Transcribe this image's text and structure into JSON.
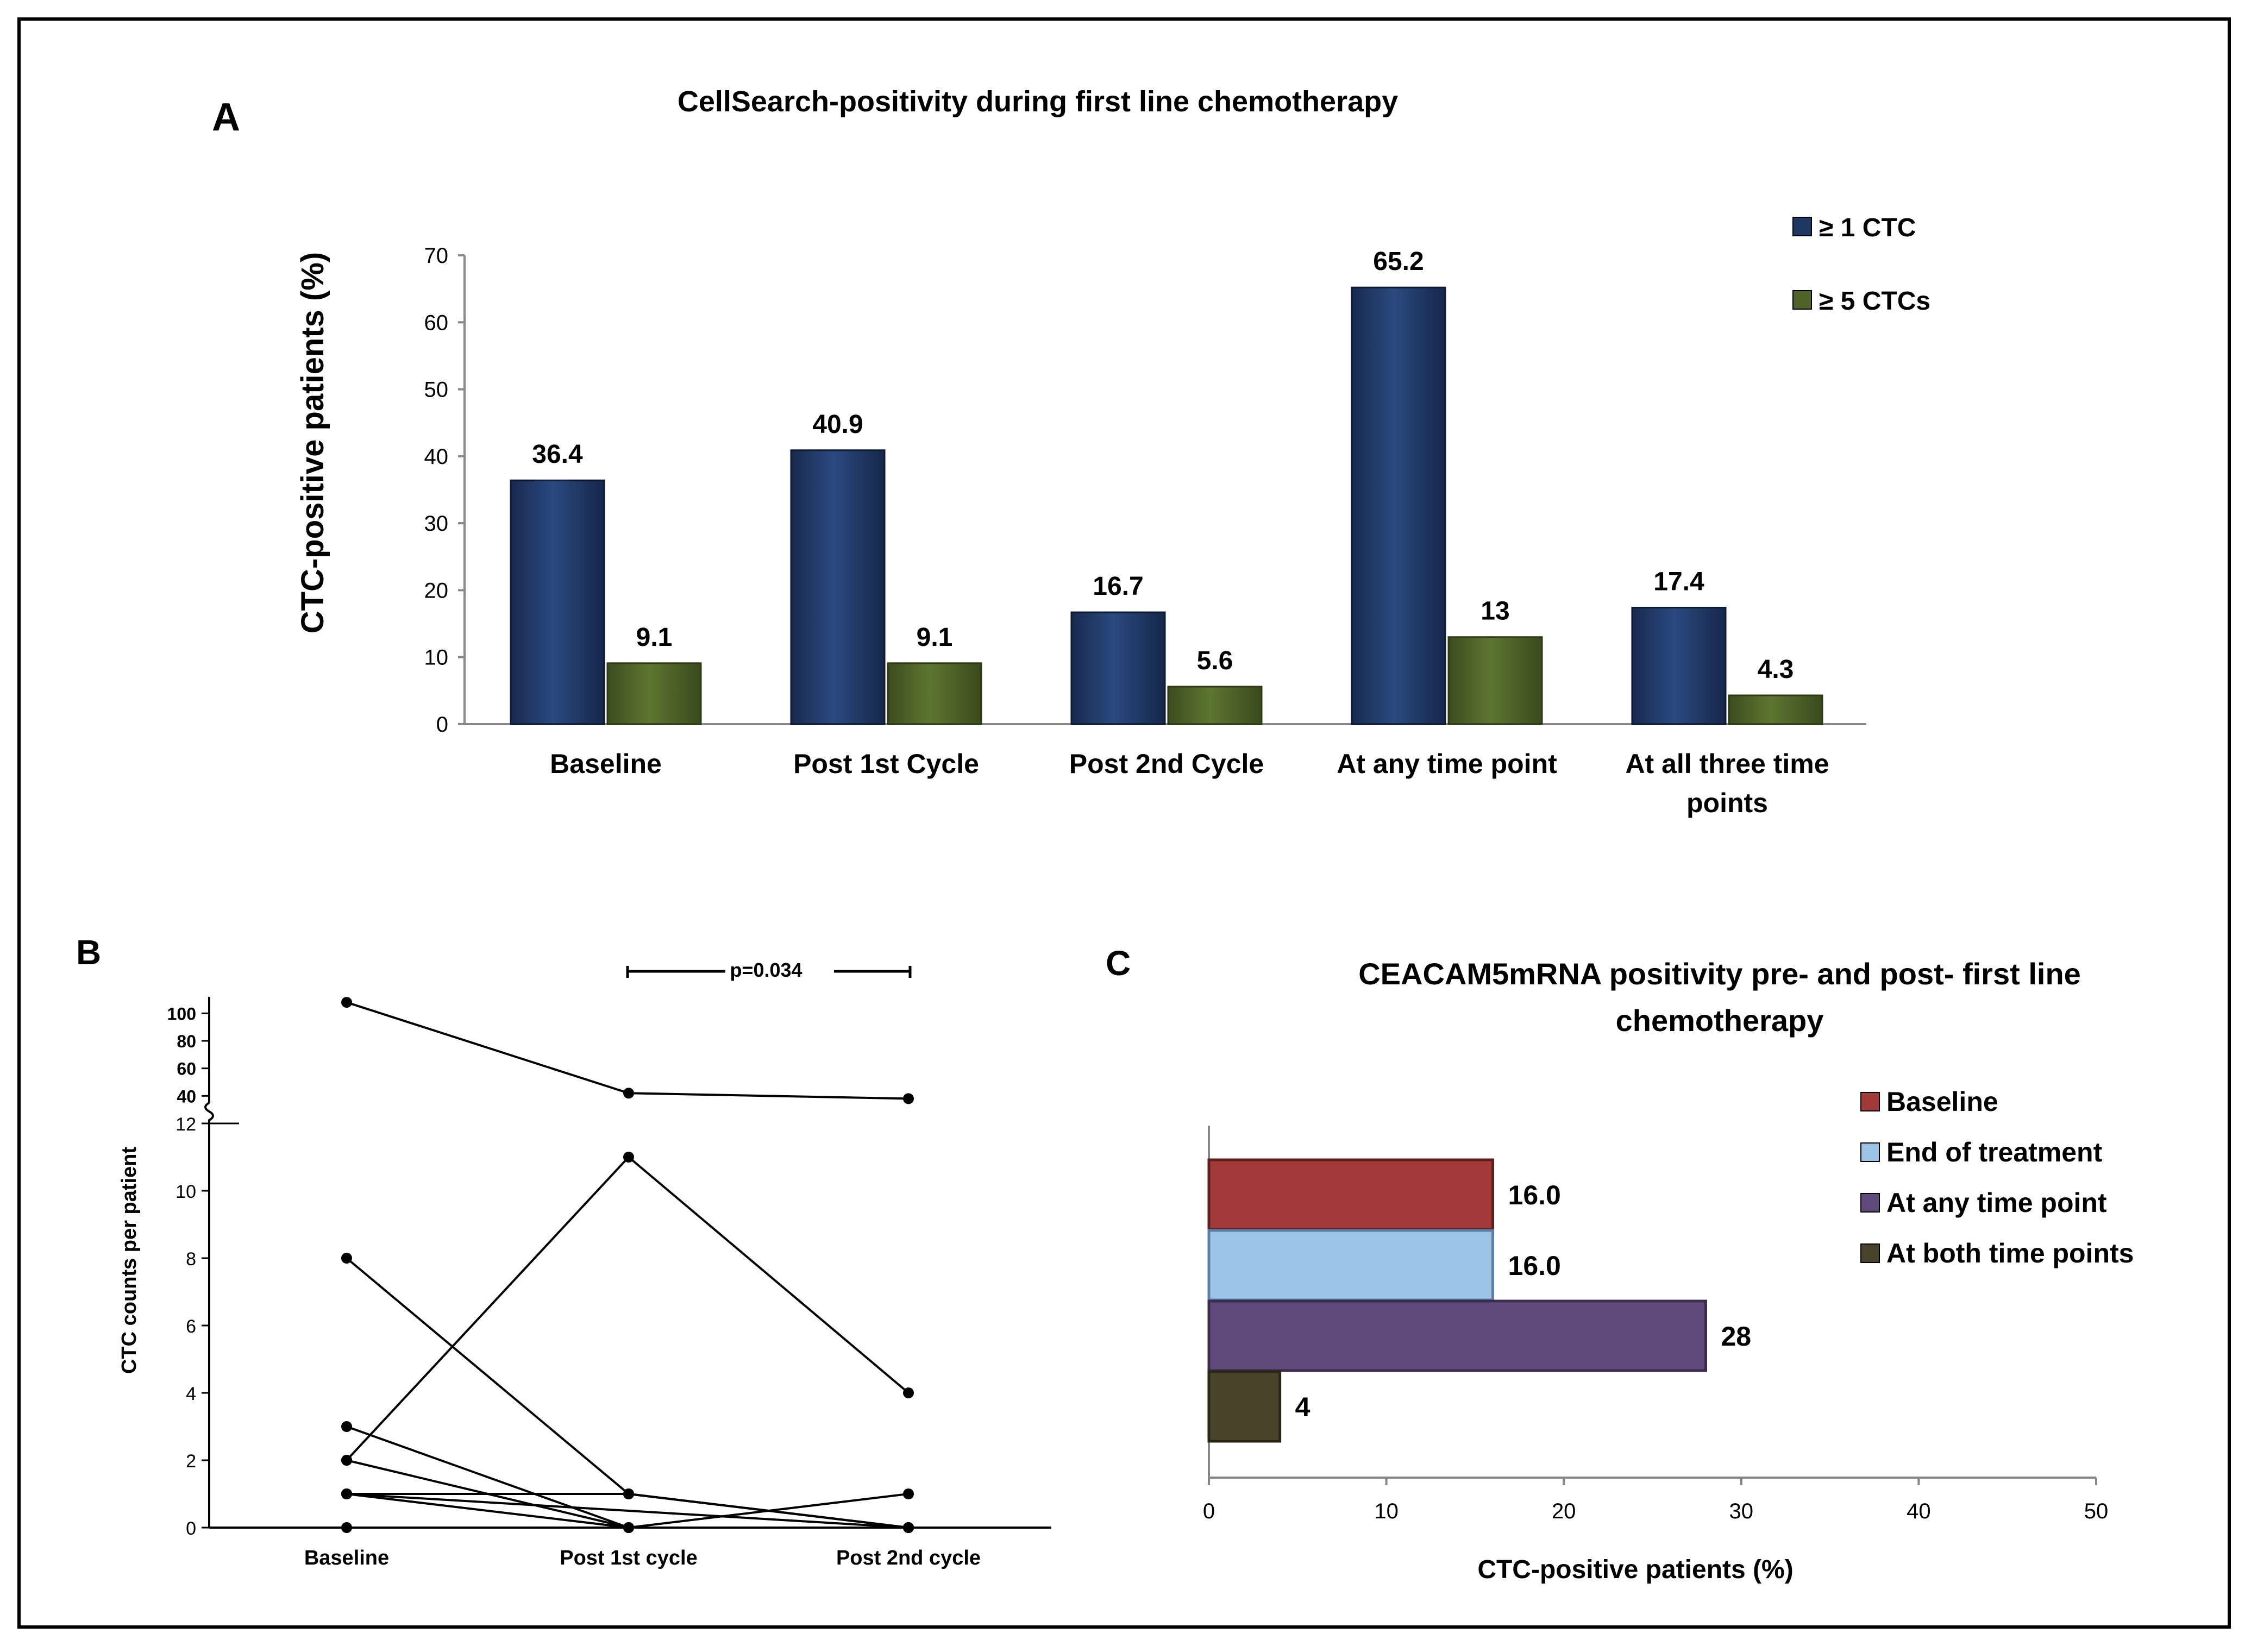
{
  "colors": {
    "ge1": "#1f3864",
    "ge5": "#4f6228",
    "baseline": "#a33a3a",
    "end_of_treatment": "#9dc3e6",
    "any_time": "#604a7b",
    "both_time": "#4a452a"
  },
  "chart_data": [
    {
      "panel": "A",
      "type": "bar",
      "title": "CellSearch-positivity during first line chemotherapy",
      "ylabel": "CTC-positive patients  (%)",
      "xlabel": "",
      "ylim": [
        0,
        70
      ],
      "yticks": [
        0,
        10,
        20,
        30,
        40,
        50,
        60,
        70
      ],
      "categories": [
        [
          "Baseline"
        ],
        [
          "Post 1st Cycle"
        ],
        [
          "Post 2nd Cycle"
        ],
        [
          "At any time point"
        ],
        [
          "At all three time",
          "points"
        ]
      ],
      "series": [
        {
          "name": "≥ 1 CTC",
          "values": [
            36.4,
            40.9,
            16.7,
            65.2,
            17.4
          ],
          "labels": [
            "36.4",
            "40.9",
            "16.7",
            "65.2",
            "17.4"
          ]
        },
        {
          "name": "≥ 5 CTCs",
          "values": [
            9.1,
            9.1,
            5.6,
            13,
            4.3
          ],
          "labels": [
            "9.1",
            "9.1",
            "5.6",
            "13",
            "4.3"
          ]
        }
      ],
      "legend": "top-right",
      "grid": false
    },
    {
      "panel": "B",
      "type": "line",
      "ylabel": "CTC counts per patient",
      "xlabel": "",
      "categories": [
        "Baseline",
        "Post 1st cycle",
        "Post 2nd cycle"
      ],
      "yticks_lower": [
        0,
        2,
        4,
        6,
        8,
        10,
        12
      ],
      "yticks_upper": [
        40,
        60,
        80,
        100
      ],
      "ylim_lower": [
        0,
        12
      ],
      "ylim_upper": [
        35,
        110
      ],
      "axis_break": true,
      "annotation": "p=0.034",
      "patients": [
        [
          108,
          42,
          38
        ],
        [
          2,
          11,
          4
        ],
        [
          8,
          1,
          0
        ],
        [
          3,
          0,
          0
        ],
        [
          2,
          0,
          1
        ],
        [
          1,
          1,
          0
        ],
        [
          1,
          0,
          0
        ],
        [
          1,
          1,
          0
        ],
        [
          1,
          0.5,
          0
        ],
        [
          0,
          0,
          0
        ]
      ]
    },
    {
      "panel": "C",
      "type": "bar",
      "orientation": "horizontal",
      "title": [
        "CEACAM5mRNA positivity pre- and post- first line",
        "chemotherapy"
      ],
      "xlabel": "CTC-positive patients (%)",
      "ylabel": "",
      "xlim": [
        0,
        50
      ],
      "xticks": [
        0,
        10,
        20,
        30,
        40,
        50
      ],
      "series": [
        {
          "name": "Baseline",
          "value": 16.0,
          "label": "16.0"
        },
        {
          "name": "End of treatment",
          "value": 16.0,
          "label": "16.0"
        },
        {
          "name": "At any time point",
          "value": 28,
          "label": "28"
        },
        {
          "name": "At both time points",
          "value": 4,
          "label": "4"
        }
      ],
      "legend": "top-right",
      "grid": false
    }
  ],
  "panel_labels": [
    "A",
    "B",
    "C"
  ]
}
